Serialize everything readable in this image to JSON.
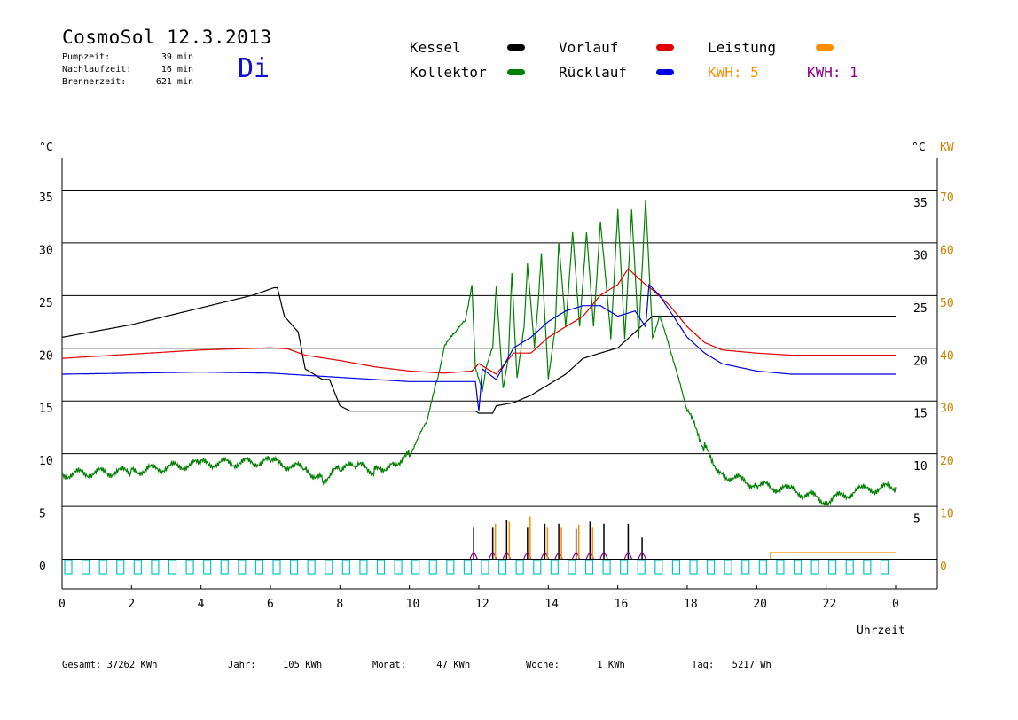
{
  "header": {
    "title": "CosmoSol 12.3.2013",
    "day": "Di",
    "stats": [
      {
        "label": "Pumpzeit:",
        "value": "39 min"
      },
      {
        "label": "Nachlaufzeit:",
        "value": "16 min"
      },
      {
        "label": "Brennerzeit:",
        "value": "621 min"
      }
    ]
  },
  "legend": {
    "kessel": "Kessel",
    "kollektor": "Kollektor",
    "vorlauf": "Vorlauf",
    "ruecklauf": "Rücklauf",
    "leistung": "Leistung",
    "kwh_orange": "KWH: 5",
    "kwh_purple": "KWH: 1"
  },
  "colors": {
    "kessel": "#000000",
    "kollektor": "#008000",
    "vorlauf": "#e00000",
    "ruecklauf": "#0000e0",
    "leistung": "#ff8c00",
    "purple": "#8b008b",
    "pump": "#00c8c8",
    "grid": "#000000",
    "kw_axis": "#d08000"
  },
  "footer": {
    "gesamt_label": "Gesamt:",
    "gesamt_value": "37262 KWh",
    "jahr_label": "Jahr:",
    "jahr_value": "105 KWh",
    "monat_label": "Monat:",
    "monat_value": "47 KWh",
    "woche_label": "Woche:",
    "woche_value": "1 KWh",
    "tag_label": "Tag:",
    "tag_value": "5217 Wh"
  },
  "chart_data": {
    "type": "line",
    "xlabel": "Uhrzeit",
    "ylabel_left": "°C",
    "ylabel_right_temp": "°C",
    "ylabel_right_kw": "KW",
    "xlim": [
      0,
      24
    ],
    "ylim": [
      0,
      35
    ],
    "grid": true,
    "x_ticks": [
      "0",
      "2",
      "4",
      "6",
      "8",
      "10",
      "12",
      "14",
      "16",
      "18",
      "20",
      "22",
      "0"
    ],
    "y_ticks_left": [
      "0",
      "5",
      "10",
      "15",
      "20",
      "25",
      "30",
      "35"
    ],
    "y_ticks_right": [
      "5",
      "10",
      "15",
      "20",
      "25",
      "30",
      "35"
    ],
    "kw_ticks": [
      "0",
      "10",
      "20",
      "30",
      "40",
      "50",
      "60",
      "70"
    ],
    "series": [
      {
        "name": "Kessel",
        "color": "#000000",
        "points": [
          [
            0,
            21
          ],
          [
            2,
            22.2
          ],
          [
            4,
            23.8
          ],
          [
            5.5,
            25
          ],
          [
            6.1,
            25.7
          ],
          [
            6.2,
            25.7
          ],
          [
            6.4,
            23
          ],
          [
            6.8,
            21.5
          ],
          [
            7.0,
            18
          ],
          [
            7.5,
            17
          ],
          [
            7.7,
            17
          ],
          [
            8.0,
            14.5
          ],
          [
            8.3,
            14
          ],
          [
            10,
            14
          ],
          [
            11.9,
            14
          ],
          [
            12,
            13.8
          ],
          [
            12.4,
            13.8
          ],
          [
            12.5,
            14.5
          ],
          [
            13,
            14.8
          ],
          [
            13.5,
            15.5
          ],
          [
            14,
            16.5
          ],
          [
            14.5,
            17.5
          ],
          [
            15,
            19
          ],
          [
            15.5,
            19.5
          ],
          [
            16,
            20
          ],
          [
            16.5,
            21.5
          ],
          [
            17,
            23
          ],
          [
            17.5,
            23
          ],
          [
            24,
            23
          ]
        ]
      },
      {
        "name": "Kollektor",
        "color": "#008000",
        "points": [
          [
            0,
            8
          ],
          [
            2,
            8.3
          ],
          [
            4,
            9
          ],
          [
            6,
            9.2
          ],
          [
            7,
            8.5
          ],
          [
            7.5,
            7.5
          ],
          [
            8,
            8.5
          ],
          [
            8.5,
            8.8
          ],
          [
            9,
            8.3
          ],
          [
            9.5,
            9
          ],
          [
            10,
            9.8
          ],
          [
            10.5,
            13
          ],
          [
            10.8,
            17
          ],
          [
            11,
            20
          ],
          [
            11.3,
            21.5
          ],
          [
            11.6,
            22.5
          ],
          [
            11.8,
            26
          ],
          [
            11.9,
            18
          ],
          [
            12.1,
            16
          ],
          [
            12.2,
            18
          ],
          [
            12.4,
            20
          ],
          [
            12.5,
            26
          ],
          [
            12.7,
            16
          ],
          [
            12.85,
            19
          ],
          [
            12.95,
            27
          ],
          [
            13.1,
            17
          ],
          [
            13.3,
            22
          ],
          [
            13.4,
            28
          ],
          [
            13.6,
            20
          ],
          [
            13.7,
            24
          ],
          [
            13.8,
            29
          ],
          [
            14.0,
            17
          ],
          [
            14.2,
            22
          ],
          [
            14.3,
            30
          ],
          [
            14.5,
            22
          ],
          [
            14.7,
            31
          ],
          [
            14.9,
            22
          ],
          [
            15.1,
            31
          ],
          [
            15.3,
            22
          ],
          [
            15.5,
            32
          ],
          [
            15.8,
            21
          ],
          [
            16.0,
            33
          ],
          [
            16.2,
            21
          ],
          [
            16.4,
            33
          ],
          [
            16.6,
            21
          ],
          [
            16.8,
            34
          ],
          [
            17.0,
            21
          ],
          [
            17.2,
            23
          ],
          [
            17.5,
            20
          ],
          [
            18,
            14
          ],
          [
            18.5,
            10.5
          ],
          [
            19,
            8
          ],
          [
            20,
            7
          ],
          [
            21,
            6.5
          ],
          [
            22,
            5.5
          ],
          [
            23,
            6.5
          ],
          [
            24,
            6.8
          ]
        ]
      },
      {
        "name": "Vorlauf",
        "color": "#e00000",
        "points": [
          [
            0,
            19
          ],
          [
            2,
            19.4
          ],
          [
            4,
            19.8
          ],
          [
            6,
            20
          ],
          [
            6.5,
            19.9
          ],
          [
            7,
            19.3
          ],
          [
            8,
            18.8
          ],
          [
            9,
            18.2
          ],
          [
            10,
            17.8
          ],
          [
            11,
            17.6
          ],
          [
            11.8,
            17.8
          ],
          [
            12,
            18.5
          ],
          [
            12.5,
            17.5
          ],
          [
            13,
            19.5
          ],
          [
            13.5,
            19.5
          ],
          [
            14,
            21
          ],
          [
            14.5,
            22
          ],
          [
            15,
            23
          ],
          [
            15.5,
            25
          ],
          [
            16,
            26
          ],
          [
            16.3,
            27.5
          ],
          [
            16.8,
            26
          ],
          [
            17,
            25.5
          ],
          [
            17.5,
            24
          ],
          [
            18,
            22
          ],
          [
            18.5,
            20.5
          ],
          [
            19,
            19.8
          ],
          [
            20,
            19.5
          ],
          [
            21,
            19.3
          ],
          [
            22,
            19.3
          ],
          [
            24,
            19.3
          ]
        ]
      },
      {
        "name": "Rücklauf",
        "color": "#0000e0",
        "points": [
          [
            0,
            17.5
          ],
          [
            2,
            17.6
          ],
          [
            4,
            17.7
          ],
          [
            6,
            17.6
          ],
          [
            7,
            17.4
          ],
          [
            8,
            17.2
          ],
          [
            9,
            17
          ],
          [
            10,
            16.8
          ],
          [
            11,
            16.8
          ],
          [
            11.9,
            16.8
          ],
          [
            12,
            14
          ],
          [
            12.1,
            18
          ],
          [
            12.5,
            17
          ],
          [
            13,
            20
          ],
          [
            13.5,
            21
          ],
          [
            14,
            22.5
          ],
          [
            14.5,
            23.5
          ],
          [
            15,
            24
          ],
          [
            15.5,
            24
          ],
          [
            16,
            23
          ],
          [
            16.5,
            23.5
          ],
          [
            16.8,
            22
          ],
          [
            16.9,
            26
          ],
          [
            17.2,
            25
          ],
          [
            17.5,
            23.5
          ],
          [
            18,
            21
          ],
          [
            18.5,
            19.5
          ],
          [
            19,
            18.5
          ],
          [
            20,
            17.8
          ],
          [
            21,
            17.5
          ],
          [
            22,
            17.5
          ],
          [
            24,
            17.5
          ]
        ]
      }
    ],
    "bars": {
      "kessel_bursts": [
        [
          11.85,
          3
        ],
        [
          12.4,
          3
        ],
        [
          12.8,
          3.7
        ],
        [
          13.4,
          3
        ],
        [
          13.9,
          3.3
        ],
        [
          14.3,
          3.3
        ],
        [
          14.8,
          2.8
        ],
        [
          15.2,
          3.5
        ],
        [
          15.6,
          3.3
        ],
        [
          16.3,
          3.3
        ],
        [
          16.7,
          2
        ]
      ],
      "leistung_bursts": [
        [
          12.4,
          3.3
        ],
        [
          12.8,
          3.5
        ],
        [
          13.4,
          4
        ],
        [
          13.9,
          3
        ],
        [
          14.3,
          3
        ],
        [
          14.8,
          3.2
        ],
        [
          15.2,
          3
        ],
        [
          20.4,
          0.6
        ],
        [
          24,
          0.6
        ]
      ]
    }
  }
}
